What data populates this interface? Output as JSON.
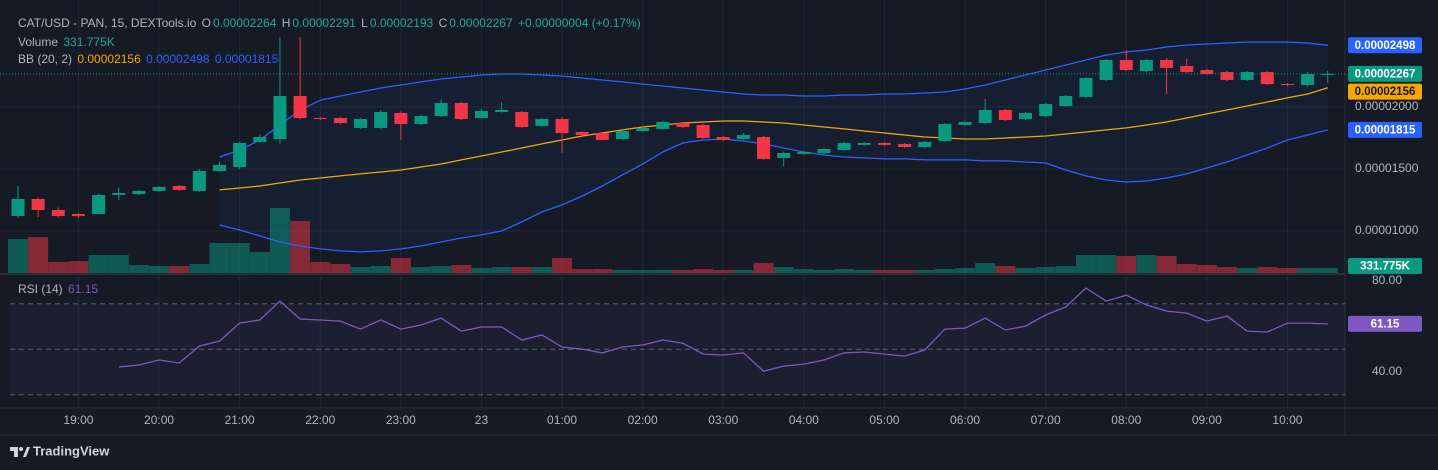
{
  "chart_data": {
    "type": "candlestick",
    "title": "CAT/USD - PAN, 15, DEXTools.io",
    "ohlc_labels": [
      "O",
      "H",
      "L",
      "C"
    ],
    "change": "+0.00000004 (+0.17%)",
    "categories": [
      null,
      null,
      null,
      "19:00",
      null,
      null,
      null,
      "20:00",
      null,
      null,
      null,
      "21:00",
      null,
      null,
      null,
      "22:00",
      null,
      null,
      null,
      "23:00",
      null,
      null,
      null,
      "23",
      null,
      null,
      null,
      "01:00",
      null,
      null,
      null,
      "02:00",
      null,
      null,
      null,
      "03:00",
      null,
      null,
      null,
      "04:00",
      null,
      null,
      null,
      "05:00",
      null,
      null,
      null,
      "06:00",
      null,
      null,
      null,
      "07:00",
      null,
      null,
      null,
      "08:00",
      null,
      null,
      null,
      "09:00",
      null,
      null,
      null,
      "10:00",
      null,
      null
    ],
    "open": [
      1.121e-05,
      1.258e-05,
      1.169e-05,
      1.137e-05,
      1.137e-05,
      1.29e-05,
      1.298e-05,
      1.323e-05,
      1.363e-05,
      1.323e-05,
      1.484e-05,
      1.516e-05,
      1.718e-05,
      1.742e-05,
      2.089e-05,
      1.911e-05,
      1.911e-05,
      1.831e-05,
      1.831e-05,
      1.952e-05,
      1.863e-05,
      1.927e-05,
      2.032e-05,
      1.911e-05,
      1.96e-05,
      1.96e-05,
      1.847e-05,
      1.903e-05,
      1.798e-05,
      1.79e-05,
      1.742e-05,
      1.806e-05,
      1.823e-05,
      1.871e-05,
      1.855e-05,
      1.758e-05,
      1.742e-05,
      1.758e-05,
      1.589e-05,
      1.621e-05,
      1.629e-05,
      1.653e-05,
      1.694e-05,
      1.71e-05,
      1.702e-05,
      1.677e-05,
      1.726e-05,
      1.855e-05,
      1.871e-05,
      1.976e-05,
      1.903e-05,
      1.927e-05,
      2.008e-05,
      2.081e-05,
      2.218e-05,
      2.379e-05,
      2.29e-05,
      2.379e-05,
      2.331e-05,
      2.298e-05,
      2.282e-05,
      2.218e-05,
      2.282e-05,
      2.185e-05,
      2.177e-05,
      2.264e-05
    ],
    "high": [
      1.363e-05,
      1.27e-05,
      1.19e-05,
      1.145e-05,
      1.3e-05,
      1.35e-05,
      1.33e-05,
      1.363e-05,
      1.37e-05,
      1.5e-05,
      1.56e-05,
      1.72e-05,
      1.78e-05,
      2.565e-05,
      2.565e-05,
      1.92e-05,
      1.92e-05,
      1.91e-05,
      1.975e-05,
      1.965e-05,
      1.935e-05,
      2.065e-05,
      2.04e-05,
      1.985e-05,
      2.04e-05,
      1.968e-05,
      1.91e-05,
      1.92e-05,
      1.806e-05,
      1.8e-05,
      1.815e-05,
      1.84e-05,
      1.89e-05,
      1.88e-05,
      1.865e-05,
      1.766e-05,
      1.79e-05,
      1.766e-05,
      1.64e-05,
      1.645e-05,
      1.67e-05,
      1.72e-05,
      1.718e-05,
      1.718e-05,
      1.71e-05,
      1.726e-05,
      1.871e-05,
      1.89e-05,
      2.065e-05,
      1.985e-05,
      1.96e-05,
      2.032e-05,
      2.097e-05,
      2.24e-05,
      2.387e-05,
      2.46e-05,
      2.387e-05,
      2.395e-05,
      2.387e-05,
      2.306e-05,
      2.29e-05,
      2.29e-05,
      2.29e-05,
      2.193e-05,
      2.282e-05,
      2.291e-05
    ],
    "low": [
      1.105e-05,
      1.113e-05,
      1.105e-05,
      1.105e-05,
      1.137e-05,
      1.25e-05,
      1.29e-05,
      1.315e-05,
      1.323e-05,
      1.315e-05,
      1.48e-05,
      1.5e-05,
      1.71e-05,
      1.7e-05,
      1.9e-05,
      1.895e-05,
      1.86e-05,
      1.825e-05,
      1.82e-05,
      1.734e-05,
      1.855e-05,
      1.92e-05,
      1.895e-05,
      1.905e-05,
      1.955e-05,
      1.83e-05,
      1.84e-05,
      1.63e-05,
      1.766e-05,
      1.73e-05,
      1.734e-05,
      1.8e-05,
      1.815e-05,
      1.83e-05,
      1.742e-05,
      1.726e-05,
      1.734e-05,
      1.573e-05,
      1.52e-05,
      1.613e-05,
      1.621e-05,
      1.645e-05,
      1.686e-05,
      1.686e-05,
      1.67e-05,
      1.669e-05,
      1.718e-05,
      1.847e-05,
      1.863e-05,
      1.887e-05,
      1.895e-05,
      1.919e-05,
      2e-05,
      2.073e-05,
      2.21e-05,
      2.29e-05,
      2.282e-05,
      2.105e-05,
      2.274e-05,
      2.258e-05,
      2.21e-05,
      2.21e-05,
      2.177e-05,
      2.169e-05,
      2.16e-05,
      2.193e-05
    ],
    "close": [
      1.258e-05,
      1.169e-05,
      1.121e-05,
      1.121e-05,
      1.29e-05,
      1.306e-05,
      1.323e-05,
      1.355e-05,
      1.331e-05,
      1.484e-05,
      1.532e-05,
      1.71e-05,
      1.758e-05,
      2.089e-05,
      1.911e-05,
      1.903e-05,
      1.871e-05,
      1.903e-05,
      1.96e-05,
      1.863e-05,
      1.927e-05,
      2.032e-05,
      1.903e-05,
      1.968e-05,
      1.976e-05,
      1.839e-05,
      1.903e-05,
      1.79e-05,
      1.774e-05,
      1.734e-05,
      1.806e-05,
      1.831e-05,
      1.879e-05,
      1.839e-05,
      1.75e-05,
      1.734e-05,
      1.774e-05,
      1.581e-05,
      1.629e-05,
      1.637e-05,
      1.661e-05,
      1.71e-05,
      1.71e-05,
      1.694e-05,
      1.677e-05,
      1.718e-05,
      1.863e-05,
      1.879e-05,
      1.976e-05,
      1.895e-05,
      1.952e-05,
      2.024e-05,
      2.089e-05,
      2.234e-05,
      2.379e-05,
      2.298e-05,
      2.379e-05,
      2.315e-05,
      2.282e-05,
      2.266e-05,
      2.218e-05,
      2.282e-05,
      2.185e-05,
      2.177e-05,
      2.266e-05,
      2.267e-05
    ],
    "up_color": "#089981",
    "down_color": "#f23645",
    "ylim": [
      6.61e-06,
      2.863e-05
    ],
    "yticks": [
      {
        "value": 2e-05,
        "label": "0.00002000"
      },
      {
        "value": 1.5e-05,
        "label": "0.00001500"
      },
      {
        "value": 1e-05,
        "label": "0.00001000"
      }
    ],
    "grid": true,
    "bollinger": {
      "name": "BB (20, 2)",
      "basis": {
        "color": "#f7a600",
        "values": [
          null,
          null,
          null,
          null,
          null,
          null,
          null,
          null,
          null,
          null,
          1.331e-05,
          1.347e-05,
          1.363e-05,
          1.387e-05,
          1.411e-05,
          1.427e-05,
          1.444e-05,
          1.46e-05,
          1.476e-05,
          1.492e-05,
          1.516e-05,
          1.54e-05,
          1.573e-05,
          1.605e-05,
          1.637e-05,
          1.669e-05,
          1.702e-05,
          1.734e-05,
          1.766e-05,
          1.79e-05,
          1.815e-05,
          1.839e-05,
          1.855e-05,
          1.871e-05,
          1.879e-05,
          1.887e-05,
          1.887e-05,
          1.879e-05,
          1.871e-05,
          1.855e-05,
          1.839e-05,
          1.823e-05,
          1.806e-05,
          1.79e-05,
          1.774e-05,
          1.758e-05,
          1.75e-05,
          1.742e-05,
          1.742e-05,
          1.75e-05,
          1.758e-05,
          1.766e-05,
          1.782e-05,
          1.798e-05,
          1.815e-05,
          1.831e-05,
          1.855e-05,
          1.879e-05,
          1.911e-05,
          1.944e-05,
          1.976e-05,
          2.008e-05,
          2.04e-05,
          2.073e-05,
          2.105e-05,
          2.156e-05
        ]
      },
      "upper": {
        "color": "#2962ff",
        "values": [
          null,
          null,
          null,
          null,
          null,
          null,
          null,
          null,
          null,
          null,
          1.597e-05,
          1.653e-05,
          1.734e-05,
          1.855e-05,
          1.976e-05,
          2.056e-05,
          2.089e-05,
          2.121e-05,
          2.153e-05,
          2.177e-05,
          2.202e-05,
          2.226e-05,
          2.242e-05,
          2.258e-05,
          2.266e-05,
          2.266e-05,
          2.258e-05,
          2.25e-05,
          2.234e-05,
          2.218e-05,
          2.202e-05,
          2.185e-05,
          2.169e-05,
          2.153e-05,
          2.137e-05,
          2.121e-05,
          2.105e-05,
          2.097e-05,
          2.097e-05,
          2.089e-05,
          2.089e-05,
          2.097e-05,
          2.097e-05,
          2.105e-05,
          2.105e-05,
          2.113e-05,
          2.121e-05,
          2.145e-05,
          2.177e-05,
          2.218e-05,
          2.258e-05,
          2.298e-05,
          2.339e-05,
          2.379e-05,
          2.419e-05,
          2.444e-05,
          2.46e-05,
          2.484e-05,
          2.5e-05,
          2.508e-05,
          2.516e-05,
          2.524e-05,
          2.524e-05,
          2.524e-05,
          2.516e-05,
          2.498e-05
        ]
      },
      "lower": {
        "color": "#2962ff",
        "values": [
          null,
          null,
          null,
          null,
          null,
          null,
          null,
          null,
          null,
          null,
          1.048e-05,
          1.008e-05,
          9.6e-06,
          9.11e-06,
          8.79e-06,
          8.55e-06,
          8.39e-06,
          8.31e-06,
          8.39e-06,
          8.55e-06,
          8.79e-06,
          9.11e-06,
          9.43e-06,
          9.68e-06,
          1e-05,
          1.073e-05,
          1.153e-05,
          1.21e-05,
          1.282e-05,
          1.363e-05,
          1.452e-05,
          1.54e-05,
          1.637e-05,
          1.71e-05,
          1.734e-05,
          1.742e-05,
          1.726e-05,
          1.702e-05,
          1.669e-05,
          1.637e-05,
          1.613e-05,
          1.597e-05,
          1.589e-05,
          1.581e-05,
          1.581e-05,
          1.573e-05,
          1.573e-05,
          1.573e-05,
          1.565e-05,
          1.565e-05,
          1.556e-05,
          1.548e-05,
          1.492e-05,
          1.444e-05,
          1.411e-05,
          1.395e-05,
          1.403e-05,
          1.427e-05,
          1.46e-05,
          1.508e-05,
          1.556e-05,
          1.613e-05,
          1.669e-05,
          1.734e-05,
          1.774e-05,
          1.815e-05
        ]
      }
    },
    "volume": {
      "name": "Volume",
      "values": [
        2244000,
        2376000,
        726000,
        792000,
        1188000,
        1188000,
        528000,
        462000,
        462000,
        594000,
        1980000,
        1980000,
        1386000,
        4290000,
        3432000,
        726000,
        594000,
        396000,
        462000,
        990000,
        396000,
        462000,
        528000,
        330000,
        396000,
        396000,
        396000,
        990000,
        264000,
        264000,
        198000,
        198000,
        198000,
        198000,
        264000,
        198000,
        198000,
        660000,
        396000,
        264000,
        198000,
        264000,
        198000,
        198000,
        198000,
        198000,
        264000,
        330000,
        660000,
        462000,
        330000,
        396000,
        462000,
        1188000,
        1188000,
        1122000,
        1188000,
        1122000,
        594000,
        528000,
        396000,
        330000,
        396000,
        330000,
        330000,
        331775
      ],
      "value_labels": [
        null,
        null,
        null,
        null,
        null,
        null,
        null,
        null,
        null,
        null,
        null,
        null,
        null,
        null,
        null,
        null,
        null,
        null,
        null,
        null,
        null,
        null,
        null,
        null,
        null,
        null,
        null,
        null,
        null,
        null,
        null,
        null,
        null,
        null,
        null,
        null,
        null,
        null,
        null,
        null,
        null,
        null,
        null,
        null,
        null,
        null,
        null,
        null,
        null,
        null,
        null,
        null,
        null,
        null,
        null,
        null,
        null,
        null,
        null,
        null,
        null,
        null,
        null,
        null,
        null,
        "331.775K"
      ]
    },
    "rsi": {
      "name": "RSI (14)",
      "color": "#7e57c2",
      "values": [
        null,
        null,
        null,
        null,
        null,
        42.2,
        43.1,
        45.3,
        44.0,
        51.4,
        53.6,
        61.5,
        62.9,
        71.2,
        63.3,
        62.9,
        62.4,
        58.9,
        62.9,
        58.9,
        60.7,
        63.7,
        58.0,
        59.8,
        59.8,
        54.1,
        56.3,
        51.0,
        50.1,
        48.4,
        51.0,
        51.9,
        54.1,
        52.7,
        47.9,
        47.5,
        48.4,
        40.4,
        42.6,
        43.5,
        45.3,
        48.4,
        48.8,
        47.9,
        47.0,
        49.7,
        58.9,
        59.3,
        63.7,
        58.5,
        60.2,
        65.1,
        68.6,
        76.9,
        71.2,
        73.8,
        69.5,
        66.8,
        65.9,
        62.4,
        64.6,
        58.0,
        57.6,
        61.5,
        61.5,
        61.15
      ],
      "ylim": [
        24.2,
        83.1
      ],
      "yticks": [
        {
          "value": 80,
          "label": "80.00"
        },
        {
          "value": 40,
          "label": "40.00"
        }
      ],
      "bands": [
        70,
        50,
        30
      ]
    },
    "footer": "TradingView"
  }
}
